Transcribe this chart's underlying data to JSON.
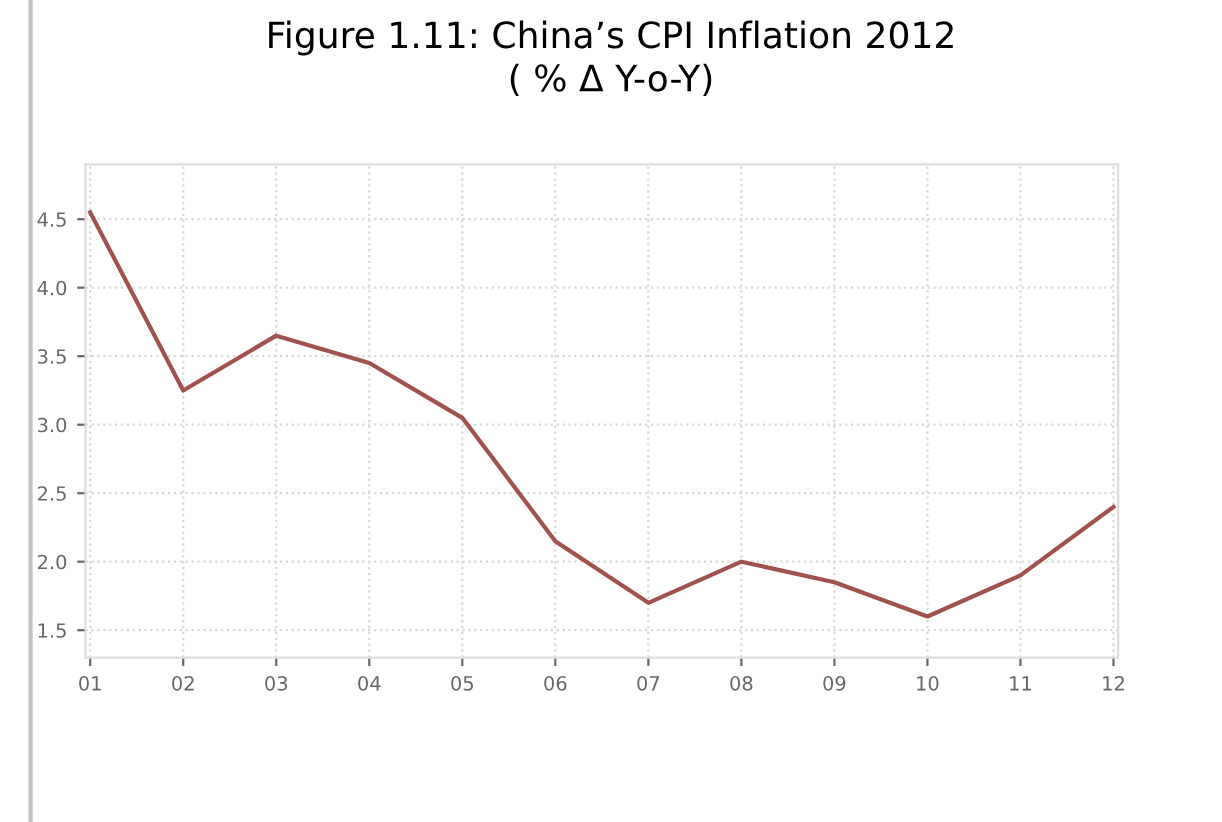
{
  "chart_data": {
    "type": "line",
    "title": "Figure 1.11: China’s CPI Inflation 2012\n( % Δ Y-o-Y)",
    "categories": [
      "01",
      "02",
      "03",
      "04",
      "05",
      "06",
      "07",
      "08",
      "09",
      "10",
      "11",
      "12"
    ],
    "series": [
      {
        "color": "#a0524f",
        "values": [
          4.55,
          3.25,
          3.65,
          3.45,
          3.05,
          2.15,
          1.7,
          2.0,
          1.85,
          1.6,
          1.9,
          2.4
        ]
      }
    ],
    "ylim": [
      1.3,
      4.9
    ],
    "yticks": [
      1.5,
      {
        "value": 2,
        "label": "2.0"
      },
      2.5,
      {
        "value": 3,
        "label": "3.0"
      },
      3.5,
      {
        "value": 4,
        "label": "4.0"
      },
      4.5
    ],
    "grid": true,
    "marker": "none",
    "line_style": "solid"
  }
}
